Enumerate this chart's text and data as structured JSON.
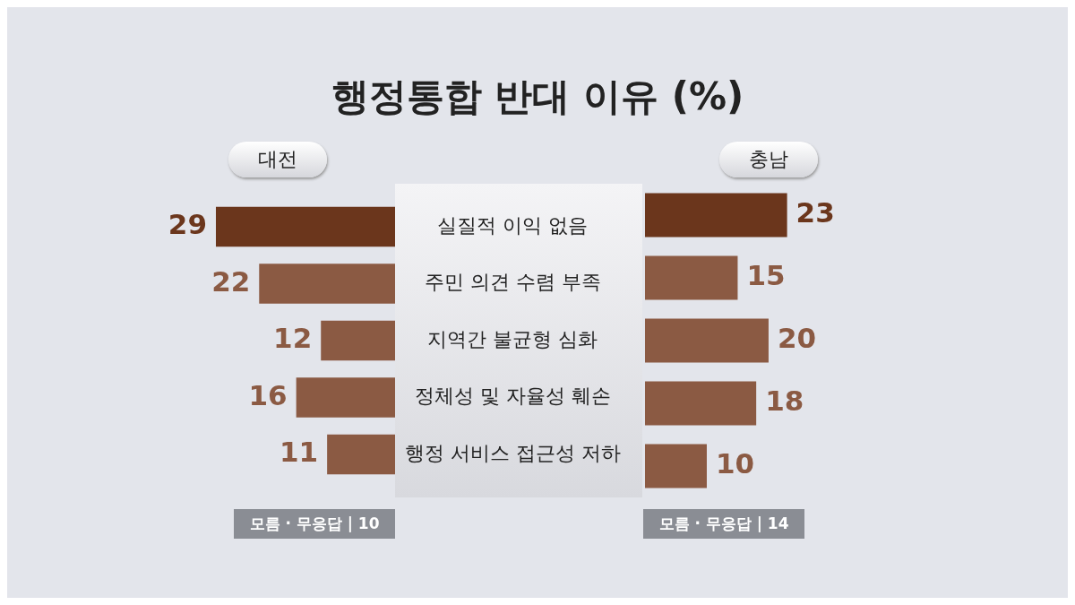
{
  "chart_data": [
    {
      "type": "bar",
      "orientation": "horizontal",
      "title": "행정통합 반대 이유 (%)",
      "subtitle": "대전",
      "categories": [
        "실질적 이익 없음",
        "주민 의견 수렴 부족",
        "지역간 불균형 심화",
        "정체성 및 자율성 훼손",
        "행정 서비스 접근성 저하"
      ],
      "values": [
        29,
        22,
        12,
        16,
        11
      ],
      "colors": [
        "#6b361c",
        "#8b5a43",
        "#8b5a43",
        "#8b5a43",
        "#8b5a43"
      ],
      "data_labels": true,
      "tick_labels": "y",
      "annotations": [
        "모름 · 무응답 | 10"
      ]
    },
    {
      "type": "bar",
      "orientation": "horizontal",
      "subtitle": "충남",
      "categories": [
        null,
        null,
        null,
        null,
        null
      ],
      "values": [
        23,
        15,
        20,
        18,
        10
      ],
      "colors": [
        "#6b361c",
        "#8b5a43",
        "#8b5a43",
        "#8b5a43",
        "#8b5a43"
      ],
      "data_labels": true,
      "tick_labels": false,
      "annotations": [
        "모름 · 무응답 | 14"
      ]
    }
  ]
}
